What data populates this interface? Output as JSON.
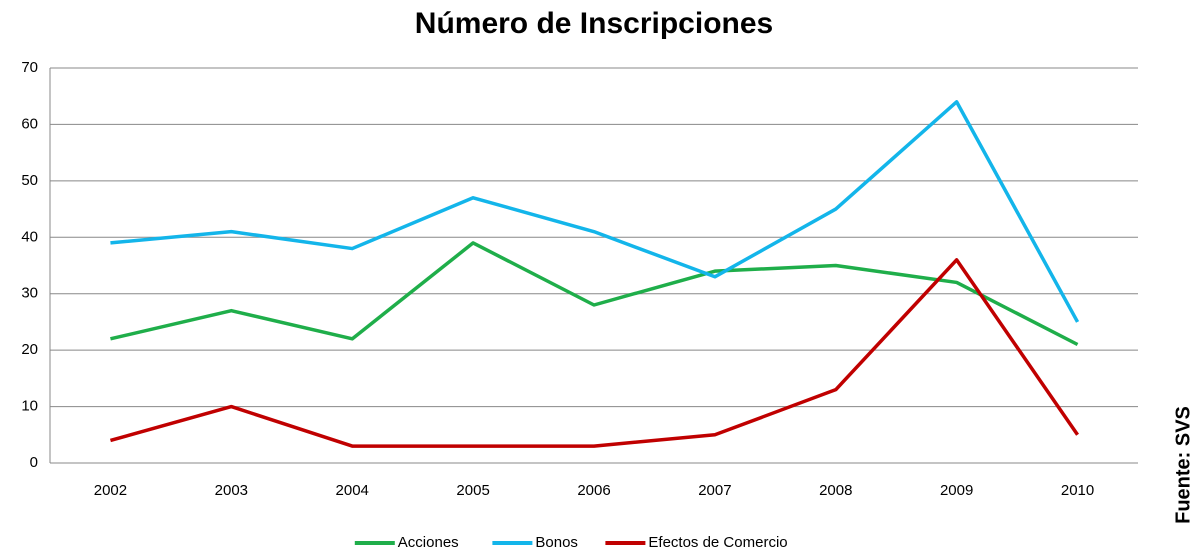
{
  "chart_data": {
    "type": "line",
    "title": "Número de Inscripciones",
    "categories": [
      "2002",
      "2003",
      "2004",
      "2005",
      "2006",
      "2007",
      "2008",
      "2009",
      "2010"
    ],
    "series": [
      {
        "name": "Acciones",
        "color": "#1fae4a",
        "values": [
          22,
          27,
          22,
          39,
          28,
          34,
          35,
          32,
          21
        ]
      },
      {
        "name": "Bonos",
        "color": "#13b5ea",
        "values": [
          39,
          41,
          38,
          47,
          41,
          33,
          45,
          64,
          25
        ]
      },
      {
        "name": "Efectos de Comercio",
        "color": "#c00000",
        "values": [
          4,
          10,
          3,
          3,
          3,
          5,
          13,
          36,
          5
        ]
      }
    ],
    "ylim": [
      0,
      70
    ],
    "yticks": [
      0,
      10,
      20,
      30,
      40,
      50,
      60,
      70
    ],
    "grid": true,
    "annotation": "Fuente: SVS"
  }
}
